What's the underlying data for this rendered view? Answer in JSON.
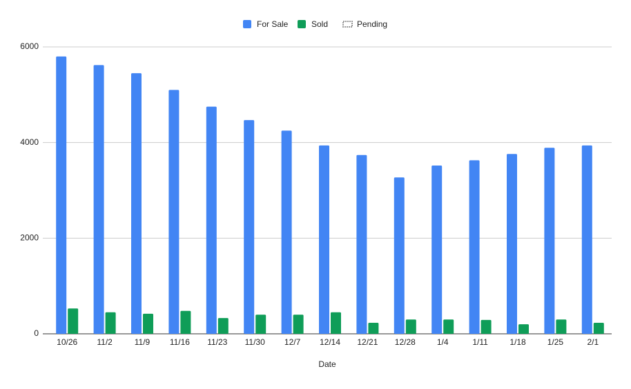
{
  "chart_data": {
    "type": "bar",
    "x_label": "Date",
    "categories": [
      "10/26",
      "11/2",
      "11/9",
      "11/16",
      "11/23",
      "11/30",
      "12/7",
      "12/14",
      "12/21",
      "12/28",
      "1/4",
      "1/11",
      "1/18",
      "1/25",
      "2/1"
    ],
    "series": [
      {
        "name": "For Sale",
        "color": "#4285f4",
        "values": [
          5800,
          5620,
          5450,
          5100,
          4750,
          4470,
          4250,
          3940,
          3740,
          3270,
          3520,
          3630,
          3760,
          3890,
          3940
        ]
      },
      {
        "name": "Sold",
        "color": "#0f9d58",
        "values": [
          530,
          450,
          420,
          480,
          330,
          400,
          400,
          450,
          230,
          300,
          300,
          290,
          200,
          300,
          230
        ]
      },
      {
        "name": "Pending",
        "color": "#999999",
        "values": [
          null,
          null,
          null,
          null,
          null,
          null,
          null,
          null,
          null,
          null,
          null,
          null,
          null,
          null,
          null
        ]
      }
    ],
    "ylim": [
      0,
      6000
    ],
    "yticks": [
      0,
      2000,
      4000,
      6000
    ],
    "grid": true,
    "legend": "top"
  }
}
